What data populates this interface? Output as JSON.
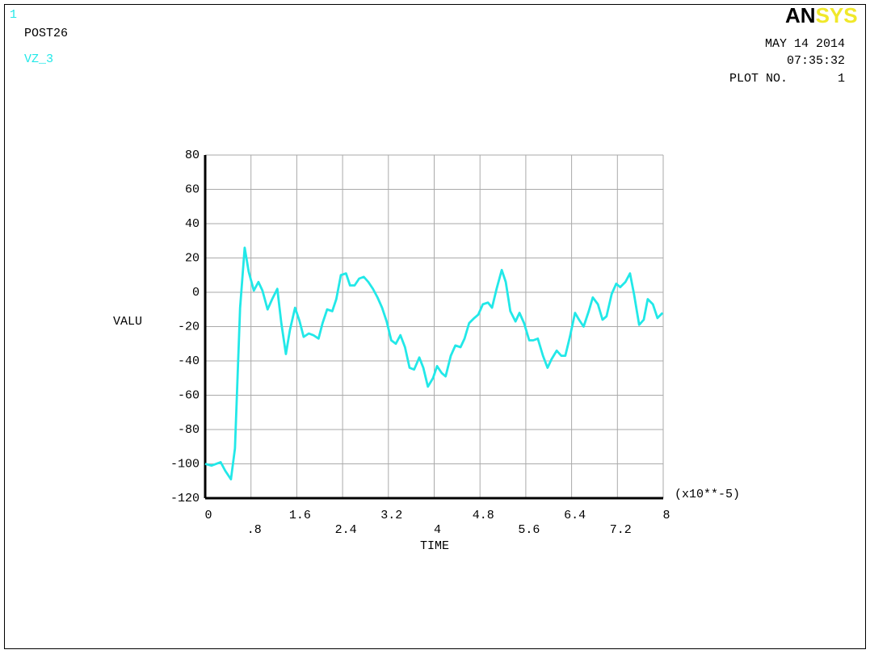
{
  "header": {
    "window_number": "1",
    "processor": "POST26",
    "logo": [
      "AN",
      "SYS"
    ],
    "date": "MAY 14 2014",
    "time": "07:35:32",
    "plot_label": "PLOT NO.",
    "plot_number": "1"
  },
  "chart_data": {
    "type": "line",
    "xlabel": "TIME",
    "ylabel": "VALU",
    "x_multiplier": "(x10**-5)",
    "x": [
      0,
      0.11,
      0.27,
      0.35,
      0.45,
      0.52,
      0.61,
      0.69,
      0.76,
      0.85,
      0.93,
      1.0,
      1.09,
      1.17,
      1.26,
      1.33,
      1.41,
      1.48,
      1.57,
      1.65,
      1.72,
      1.81,
      1.89,
      1.98,
      2.05,
      2.13,
      2.22,
      2.29,
      2.37,
      2.46,
      2.53,
      2.61,
      2.69,
      2.77,
      2.85,
      2.93,
      3.01,
      3.09,
      3.17,
      3.25,
      3.33,
      3.41,
      3.49,
      3.57,
      3.65,
      3.74,
      3.81,
      3.89,
      3.98,
      4.05,
      4.13,
      4.2,
      4.29,
      4.37,
      4.46,
      4.53,
      4.61,
      4.7,
      4.77,
      4.85,
      4.94,
      5.01,
      5.09,
      5.18,
      5.25,
      5.33,
      5.42,
      5.49,
      5.57,
      5.66,
      5.73,
      5.81,
      5.9,
      5.98,
      6.05,
      6.14,
      6.22,
      6.29,
      6.37,
      6.46,
      6.53,
      6.61,
      6.7,
      6.77,
      6.86,
      6.94,
      7.01,
      7.1,
      7.18,
      7.25,
      7.34,
      7.42,
      7.49,
      7.58,
      7.66,
      7.73,
      7.82,
      7.9,
      7.99
    ],
    "series": [
      {
        "name": "VZ_3",
        "color": "#22e8e8",
        "values": [
          -100,
          -101,
          -99,
          -104,
          -109,
          -91,
          -9,
          26,
          12,
          1,
          6,
          1,
          -10,
          -4,
          2,
          -18,
          -36,
          -22,
          -9,
          -17,
          -26,
          -24,
          -25,
          -27,
          -18,
          -10,
          -11,
          -4,
          10,
          11,
          4,
          4,
          8,
          9,
          6,
          2,
          -3,
          -9,
          -17,
          -28,
          -30,
          -25,
          -32,
          -44,
          -45,
          -38,
          -44,
          -55,
          -50,
          -43,
          -47,
          -49,
          -37,
          -31,
          -32,
          -27,
          -18,
          -15,
          -13,
          -7,
          -6,
          -9,
          2,
          13,
          6,
          -11,
          -17,
          -12,
          -18,
          -28,
          -28,
          -27,
          -37,
          -44,
          -39,
          -34,
          -37,
          -37,
          -26,
          -12,
          -16,
          -20,
          -11,
          -3,
          -7,
          -16,
          -14,
          -1,
          5,
          3,
          6,
          11,
          -1,
          -19,
          -16,
          -4,
          -7,
          -15,
          -12
        ]
      }
    ],
    "xlim": [
      0,
      8
    ],
    "ylim": [
      -120,
      80
    ],
    "xticks": [
      0,
      {
        "value": 0.8,
        "label": ".8"
      },
      1.6,
      2.4,
      3.2,
      4,
      4.8,
      5.6,
      6.4,
      7.2,
      8
    ],
    "yticks": [
      -120,
      -100,
      -80,
      -60,
      -40,
      -20,
      0,
      20,
      40,
      60,
      80
    ],
    "grid": true
  }
}
